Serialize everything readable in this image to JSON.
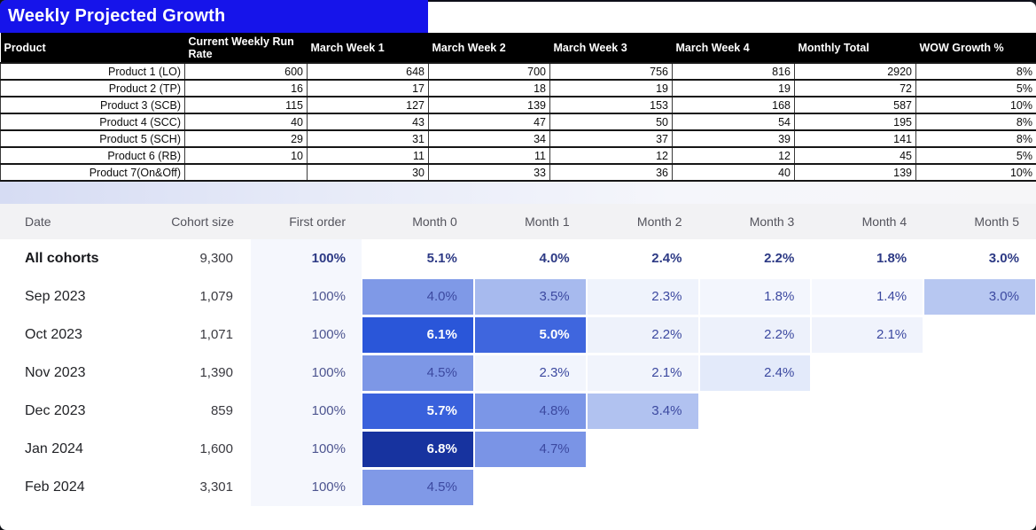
{
  "title": "Weekly Projected Growth",
  "colors": {
    "title_bg": "#1614ea",
    "sheet_header_bg": "#000000",
    "divider_tint": "#d6dcf3",
    "cohort_header_bg": "#f2f2f4",
    "first_order_tint": "#f5f7fd",
    "heat_text_dark": "#3c49a0",
    "heat_text_light": "#ffffff",
    "heat_strong": "#2a56d9",
    "heat_darkest": "#17339f"
  },
  "top_table": {
    "headers": [
      "Product",
      "Current Weekly Run Rate",
      "March Week 1",
      "March Week 2",
      "March Week 3",
      "March Week 4",
      "Monthly Total",
      "WOW Growth %"
    ],
    "rows": [
      [
        "Product 1 (LO)",
        "600",
        "648",
        "700",
        "756",
        "816",
        "2920",
        "8%"
      ],
      [
        "Product 2 (TP)",
        "16",
        "17",
        "18",
        "19",
        "19",
        "72",
        "5%"
      ],
      [
        "Product 3 (SCB)",
        "115",
        "127",
        "139",
        "153",
        "168",
        "587",
        "10%"
      ],
      [
        "Product 4 (SCC)",
        "40",
        "43",
        "47",
        "50",
        "54",
        "195",
        "8%"
      ],
      [
        "Product 5 (SCH)",
        "29",
        "31",
        "34",
        "37",
        "39",
        "141",
        "8%"
      ],
      [
        "Product 6 (RB)",
        "10",
        "11",
        "11",
        "12",
        "12",
        "45",
        "5%"
      ],
      [
        "Product 7(On&Off)",
        "",
        "30",
        "33",
        "36",
        "40",
        "139",
        "10%"
      ]
    ]
  },
  "cohort_table": {
    "headers": [
      "Date",
      "Cohort size",
      "First order",
      "Month 0",
      "Month 1",
      "Month 2",
      "Month 3",
      "Month 4",
      "Month 5"
    ],
    "rows": [
      {
        "date": "All cohorts",
        "cohort_size": "9,300",
        "first_order": "100%",
        "emphasis": true,
        "months": [
          {
            "v": "5.1%"
          },
          {
            "v": "4.0%"
          },
          {
            "v": "2.4%"
          },
          {
            "v": "2.2%"
          },
          {
            "v": "1.8%"
          },
          {
            "v": "3.0%"
          }
        ]
      },
      {
        "date": "Sep 2023",
        "cohort_size": "1,079",
        "first_order": "100%",
        "months": [
          {
            "v": "4.0%",
            "bg": "#7f99e7"
          },
          {
            "v": "3.5%",
            "bg": "#a7baee"
          },
          {
            "v": "2.3%",
            "bg": "#eff3fc"
          },
          {
            "v": "1.8%",
            "bg": "#f3f6fd"
          },
          {
            "v": "1.4%",
            "bg": "#f6f8fe"
          },
          {
            "v": "3.0%",
            "bg": "#b7c7f1"
          }
        ]
      },
      {
        "date": "Oct 2023",
        "cohort_size": "1,071",
        "first_order": "100%",
        "months": [
          {
            "v": "6.1%",
            "bg": "#2a56d9",
            "wt": true
          },
          {
            "v": "5.0%",
            "bg": "#3f66de",
            "wt": true
          },
          {
            "v": "2.2%",
            "bg": "#eef2fb"
          },
          {
            "v": "2.2%",
            "bg": "#edf1fb"
          },
          {
            "v": "2.1%",
            "bg": "#f0f3fc"
          },
          {
            "v": ""
          }
        ]
      },
      {
        "date": "Nov 2023",
        "cohort_size": "1,390",
        "first_order": "100%",
        "months": [
          {
            "v": "4.5%",
            "bg": "#7d97e6"
          },
          {
            "v": "2.3%",
            "bg": "#f2f5fd"
          },
          {
            "v": "2.1%",
            "bg": "#f1f4fc"
          },
          {
            "v": "2.4%",
            "bg": "#e3eafa"
          },
          {
            "v": ""
          },
          {
            "v": ""
          }
        ]
      },
      {
        "date": "Dec 2023",
        "cohort_size": "859",
        "first_order": "100%",
        "months": [
          {
            "v": "5.7%",
            "bg": "#3961dc",
            "wt": true
          },
          {
            "v": "4.8%",
            "bg": "#7b96e7"
          },
          {
            "v": "3.4%",
            "bg": "#b1c2f0"
          },
          {
            "v": ""
          },
          {
            "v": ""
          },
          {
            "v": ""
          }
        ]
      },
      {
        "date": "Jan 2024",
        "cohort_size": "1,600",
        "first_order": "100%",
        "months": [
          {
            "v": "6.8%",
            "bg": "#17339f",
            "wt": true
          },
          {
            "v": "4.7%",
            "bg": "#7a94e6"
          },
          {
            "v": ""
          },
          {
            "v": ""
          },
          {
            "v": ""
          },
          {
            "v": ""
          }
        ]
      },
      {
        "date": "Feb 2024",
        "cohort_size": "3,301",
        "first_order": "100%",
        "months": [
          {
            "v": "4.5%",
            "bg": "#8099e7"
          },
          {
            "v": ""
          },
          {
            "v": ""
          },
          {
            "v": ""
          },
          {
            "v": ""
          },
          {
            "v": ""
          }
        ]
      }
    ]
  }
}
